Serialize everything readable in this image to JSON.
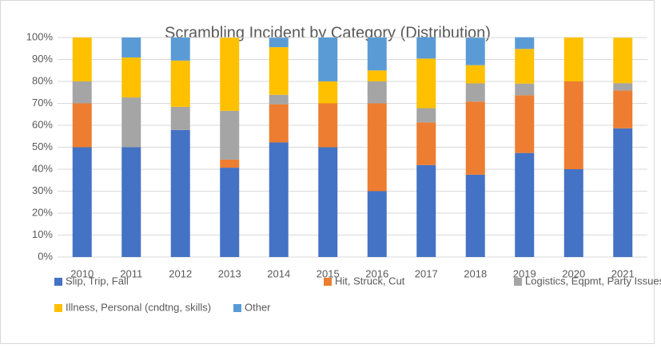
{
  "chart_data": {
    "type": "stacked_bar",
    "title": "Scrambling Incident by Category (Distribution)",
    "categories": [
      "2010",
      "2011",
      "2012",
      "2013",
      "2014",
      "2015",
      "2016",
      "2017",
      "2018",
      "2019",
      "2020",
      "2021"
    ],
    "series": [
      {
        "name": "Slip, Trip, Fall",
        "color": "#4472c4",
        "values": [
          50,
          50,
          57.9,
          40.7,
          52.2,
          50,
          30,
          41.9,
          37.5,
          47.4,
          40,
          58.6
        ]
      },
      {
        "name": "Hit, Struck, Cut",
        "color": "#ed7d31",
        "values": [
          20,
          0,
          0,
          3.7,
          17.4,
          20,
          40,
          19.4,
          33.3,
          26.3,
          40,
          17.2
        ]
      },
      {
        "name": "Logistics, Eqpmt, Party Issues",
        "color": "#a5a5a5",
        "values": [
          10,
          22.7,
          10.5,
          22.2,
          4.3,
          0,
          10,
          6.5,
          8.3,
          5.3,
          0,
          3.4
        ]
      },
      {
        "name": "Illness, Personal (cndtng, skills)",
        "color": "#ffc000",
        "values": [
          20,
          18.2,
          21.1,
          33.3,
          21.7,
          10,
          5,
          22.6,
          8.3,
          15.8,
          20,
          20.7
        ]
      },
      {
        "name": "Other",
        "color": "#5b9bd5",
        "values": [
          0,
          9.1,
          10.5,
          0,
          4.3,
          20,
          15,
          9.7,
          12.5,
          5.3,
          0,
          0
        ]
      }
    ],
    "ylim": [
      0,
      100
    ],
    "yticks": [
      {
        "value": 0,
        "label": "0%"
      },
      {
        "value": 10,
        "label": "10%"
      },
      {
        "value": 20,
        "label": "20%"
      },
      {
        "value": 30,
        "label": "30%"
      },
      {
        "value": 40,
        "label": "40%"
      },
      {
        "value": 50,
        "label": "50%"
      },
      {
        "value": 60,
        "label": "60%"
      },
      {
        "value": 70,
        "label": "70%"
      },
      {
        "value": 80,
        "label": "80%"
      },
      {
        "value": 90,
        "label": "90%"
      },
      {
        "value": 100,
        "label": "100%"
      }
    ],
    "grid": true,
    "legend": "bottom"
  }
}
